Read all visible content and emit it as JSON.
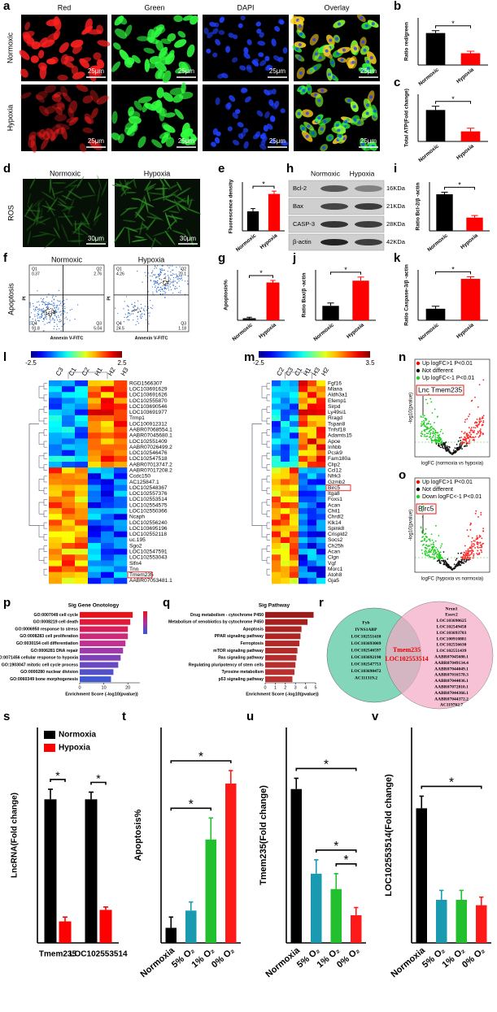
{
  "panels": {
    "a": {
      "label": "a",
      "columns": [
        "Red",
        "Green",
        "DAPI",
        "Overlay"
      ],
      "rows": [
        "Normoxic",
        "Hypoxia"
      ],
      "scale_bar": "25μm"
    },
    "b": {
      "label": "b",
      "chart_data": {
        "type": "bar",
        "categories": [
          "Normoxic",
          "Hypoxia"
        ],
        "values": [
          0.95,
          0.35
        ],
        "errors": [
          0.07,
          0.06
        ],
        "colors": [
          "#000000",
          "#ff0000"
        ],
        "ylabel": "Ratio red/green",
        "ylim": [
          0,
          1.4
        ],
        "sig_labels": [
          "*"
        ]
      }
    },
    "c": {
      "label": "c",
      "chart_data": {
        "type": "bar",
        "categories": [
          "Normoxic",
          "Hypoxia"
        ],
        "values": [
          1.0,
          0.32
        ],
        "errors": [
          0.12,
          0.1
        ],
        "colors": [
          "#000000",
          "#ff0000"
        ],
        "ylabel": "Total ATP(Fold change)",
        "ylim": [
          0,
          1.5
        ],
        "sig_labels": [
          "*"
        ]
      }
    },
    "d": {
      "label": "d",
      "columns": [
        "Normoxic",
        "Hypoxia"
      ],
      "row": "ROS",
      "scale_bar": "30μm"
    },
    "e": {
      "label": "e",
      "chart_data": {
        "type": "bar",
        "categories": [
          "Normoxic",
          "Hypoxia"
        ],
        "values": [
          0.028,
          0.053
        ],
        "errors": [
          0.004,
          0.004
        ],
        "colors": [
          "#000000",
          "#ff0000"
        ],
        "ylabel": "Fluorescence density",
        "ylim": [
          0,
          0.07
        ],
        "sig_labels": [
          "*"
        ]
      }
    },
    "h": {
      "label": "h",
      "columns": [
        "Normoxic",
        "Hypoxia"
      ],
      "bands": [
        {
          "name": "Bcl-2",
          "size": "16KDa"
        },
        {
          "name": "Bax",
          "size": "21KDa"
        },
        {
          "name": "CASP-3",
          "size": "28KDa"
        },
        {
          "name": "β-actin",
          "size": "42KDa"
        }
      ]
    },
    "i": {
      "label": "i",
      "chart_data": {
        "type": "bar",
        "categories": [
          "Normoxic",
          "Hypoxia"
        ],
        "values": [
          1.05,
          0.38
        ],
        "errors": [
          0.06,
          0.06
        ],
        "colors": [
          "#000000",
          "#ff0000"
        ],
        "ylabel": "Ratio Bcl-2/β -actin",
        "ylim": [
          0,
          1.4
        ],
        "sig_labels": [
          "*"
        ]
      }
    },
    "f": {
      "label": "f",
      "row": "Apoptosis",
      "xlabel": "Annexin V-FITC",
      "ylabel": "PI",
      "plots": [
        {
          "title": "Normoxic",
          "quadrants": [
            {
              "name": "Q1",
              "value": 0.37
            },
            {
              "name": "Q2",
              "value": 2.76
            },
            {
              "name": "Q4",
              "value": 91.8
            },
            {
              "name": "Q3",
              "value": 5.04
            }
          ]
        },
        {
          "title": "Hypoxia",
          "quadrants": [
            {
              "name": "Q1",
              "value": 4.26
            },
            {
              "name": "Q2",
              "value": 70.1
            },
            {
              "name": "Q4",
              "value": 24.5
            },
            {
              "name": "Q3",
              "value": 1.18
            }
          ]
        }
      ]
    },
    "g": {
      "label": "g",
      "chart_data": {
        "type": "bar",
        "categories": [
          "Normoxic",
          "Hypoxia"
        ],
        "values": [
          4,
          75
        ],
        "errors": [
          2,
          4
        ],
        "colors": [
          "#000000",
          "#ff0000"
        ],
        "ylabel": "Apoptosis%",
        "ylim": [
          0,
          100
        ],
        "sig_labels": [
          "*"
        ]
      }
    },
    "j": {
      "label": "j",
      "chart_data": {
        "type": "bar",
        "categories": [
          "Normoxic",
          "Hypoxia"
        ],
        "values": [
          0.2,
          0.55
        ],
        "errors": [
          0.04,
          0.05
        ],
        "colors": [
          "#000000",
          "#ff0000"
        ],
        "ylabel": "Ratio Bax/β -actin",
        "ylim": [
          0,
          0.7
        ],
        "sig_labels": [
          "*"
        ]
      }
    },
    "k": {
      "label": "k",
      "chart_data": {
        "type": "bar",
        "categories": [
          "Normoxic",
          "Hypoxia"
        ],
        "values": [
          0.32,
          1.15
        ],
        "errors": [
          0.07,
          0.06
        ],
        "colors": [
          "#000000",
          "#ff0000"
        ],
        "ylabel": "Ratio Caspase-3/β -actin",
        "ylim": [
          0,
          1.4
        ],
        "sig_labels": [
          "*"
        ]
      }
    },
    "l": {
      "label": "l",
      "colorbar": [
        -2.5,
        2.5
      ],
      "columns": [
        "C3",
        "C1",
        "C2",
        "H1",
        "H2",
        "H3"
      ],
      "genes": [
        "RGD1566307",
        "LOC103691629",
        "LOC103691626",
        "LOC102555870",
        "LOC103690546",
        "LOC103691977",
        "Trmp1",
        "LOC100912312",
        "AABR07068554.1",
        "AABR07045680.1",
        "LOC102551409",
        "AABR07026499.2",
        "LOC102546476",
        "LOC102547518",
        "AABR07013747.2",
        "AABR07017208.2",
        "Ccdc150",
        "AC125847.1",
        "LOC102548367",
        "LOC102557376",
        "LOC102553514",
        "LOC102554575",
        "LOC102550366",
        "Ncaph",
        "LOC102556240",
        "LOC103695196",
        "LOC102552118",
        "uc.195",
        "Sgo2",
        "LOC102547591",
        "LOC102553043",
        "Slfn4",
        "Tnn",
        "Tmem235",
        "AABR07053481.1"
      ]
    },
    "m": {
      "label": "m",
      "colorbar": [
        -2.5,
        3.5
      ],
      "columns": [
        "C2",
        "C3",
        "C1",
        "H1",
        "H3",
        "H2"
      ],
      "genes": [
        "Fgf16",
        "Mlana",
        "Aldh3a1",
        "Efemp1",
        "Sirpd",
        "Ly49si1",
        "Rragd",
        "Tspan8",
        "Tnfsf18",
        "Adamts15",
        "Apoe",
        "Inhbb",
        "Pcsk9",
        "Fam180a",
        "Clip2",
        "Ccl12",
        "Nfrk3",
        "Gzmb2",
        "Birc5",
        "Itga8",
        "Foxs1",
        "Acan",
        "Chil1",
        "Chrdl2",
        "Klk14",
        "Spink8",
        "Crispld2",
        "Socs2",
        "Ch25h",
        "Acan",
        "Clgn",
        "Vgf",
        "Morc1",
        "Atoh8",
        "Gja5"
      ]
    },
    "n": {
      "label": "n",
      "legend": [
        "Up logFC>1 P<0.01",
        "Not different",
        "Up logFC<-1 P<0.01"
      ],
      "legend_colors": [
        "#ff0000",
        "#000000",
        "#22cc22"
      ],
      "callout": "Lnc Tmem235",
      "xlabel": "logFC (normoxia vs hypoxia)",
      "ylabel": "-log10(pvalue)"
    },
    "o": {
      "label": "o",
      "legend": [
        "Up logFC>1 P<0.01",
        "Not different",
        "Down logFC<-1 P<0.01"
      ],
      "legend_colors": [
        "#ff0000",
        "#000000",
        "#22cc22"
      ],
      "callout": "Birc5",
      "xlabel": "logFC (hypoxia vs normoxia)",
      "ylabel": "-log10(pvalue)"
    },
    "p": {
      "label": "p",
      "chart_data": {
        "type": "hbar",
        "title": "Sig Gene Onotology",
        "categories": [
          "GO:0007049 cell cycle",
          "GO:0008219 cell death",
          "GO:0006950 response to stress",
          "GO:0008283 cell proliferation",
          "GO:0030154 cell differentiation",
          "GO:0006281 DNA repair",
          "GO:0071456 cellular response to hypoxia",
          "GO:1903047 mitotic cell cycle process",
          "GO:0000280 nuclear division",
          "GO:0060349 bone morphogenesis"
        ],
        "values": [
          22,
          21,
          20,
          20,
          19,
          18,
          17,
          16,
          14,
          13
        ],
        "colors": [
          "#e8141c",
          "#e01a3a",
          "#d81e5a",
          "#cc2a78",
          "#c03090",
          "#a03aa8",
          "#8040b8",
          "#6a48c0",
          "#5450c8",
          "#4058d0"
        ],
        "xlabel": "Enrichment Score (-log10(pvalue))",
        "xlim": [
          0,
          25
        ],
        "xticks": [
          0,
          10,
          20
        ]
      }
    },
    "q": {
      "label": "q",
      "chart_data": {
        "type": "hbar",
        "title": "Sig Pathway",
        "categories": [
          "Drug metabolism - cytochrome P450",
          "Metabolism of xenobiotics by cytochrome P450",
          "Apoptosis",
          "PPAR signaling pathway",
          "Ferroptosis",
          "mTOR signaling pathway",
          "Ras signaling pathway",
          "Regulating pluripotency of stem cells",
          "Tyrosine metabolism",
          "p53 signaling pathway"
        ],
        "values": [
          4.8,
          4.2,
          3.6,
          3.5,
          3.4,
          3.2,
          3.1,
          3.0,
          2.9,
          2.7
        ],
        "colors": [
          "#9e1b1b",
          "#a51f1f",
          "#aa2424",
          "#ae2626",
          "#b02828",
          "#b22a2a",
          "#b42c2c",
          "#b62e2e",
          "#b83030",
          "#ba3232"
        ],
        "xlabel": "Enrichment Score (-log10(pvalue))",
        "xlim": [
          0,
          5
        ],
        "xticks": [
          0,
          1,
          2,
          3,
          4,
          5
        ]
      }
    },
    "r": {
      "label": "r",
      "left": [
        "Fyb",
        "IVNS1ABP",
        "LOC102551410",
        "LOC103693069",
        "LOC102546597",
        "LOC103692190",
        "LOC102547753",
        "LOC103690472",
        "AC111319.2"
      ],
      "right": [
        "Nrxn1",
        "Essrc2",
        "LOC103690625",
        "LOC102549458",
        "LOC103693703",
        "LOC100910881",
        "LOC102556630",
        "LOC102551439",
        "AABR07045680.1",
        "AABR07049134.4",
        "AABR07044049.1",
        "AABR07016578.3",
        "AABR07044036.1",
        "AABR07072810.1",
        "AABR07044366.1",
        "AABR07044372.2",
        "AC119762.7"
      ],
      "center": [
        "Tmem235",
        "LOC102553514"
      ]
    },
    "s": {
      "label": "s",
      "chart_data": {
        "type": "grouped_bar",
        "categories": [
          "Tmem235",
          "LOC102553514"
        ],
        "series": [
          {
            "name": "Normoxia",
            "color": "#000000",
            "values": [
              1.0,
              1.0
            ],
            "errors": [
              0.07,
              0.05
            ]
          },
          {
            "name": "Hypoxia",
            "color": "#ff0000",
            "values": [
              0.15,
              0.23
            ],
            "errors": [
              0.03,
              0.02
            ]
          }
        ],
        "ylabel": "LncRNA(Fold change)",
        "ylim": [
          0,
          1.5
        ],
        "sig_labels": [
          "*",
          "*"
        ]
      }
    },
    "t": {
      "label": "t",
      "chart_data": {
        "type": "bar",
        "categories": [
          "Normoxia",
          "5% O₂",
          "1% O₂",
          "0% O₂"
        ],
        "values": [
          7,
          15,
          48,
          74
        ],
        "errors": [
          5,
          4,
          10,
          6
        ],
        "colors": [
          "#000000",
          "#1a9ab0",
          "#22c02e",
          "#ff1a1a"
        ],
        "ylabel": "Apoptosis%",
        "ylim": [
          0,
          100
        ],
        "sig_labels": [
          "*",
          "*"
        ]
      }
    },
    "u": {
      "label": "u",
      "chart_data": {
        "type": "bar",
        "categories": [
          "Normoxia",
          "5% O₂",
          "1% O₂",
          "0% O₂"
        ],
        "values": [
          1.0,
          0.45,
          0.35,
          0.18
        ],
        "errors": [
          0.07,
          0.09,
          0.1,
          0.05
        ],
        "colors": [
          "#000000",
          "#1a9ab0",
          "#22c02e",
          "#ff1a1a"
        ],
        "ylabel": "Tmem235(Fold change)",
        "ylim": [
          0,
          1.4
        ],
        "sig_labels": [
          "*",
          "*",
          "*"
        ]
      }
    },
    "v": {
      "label": "v",
      "chart_data": {
        "type": "bar",
        "categories": [
          "Normoxia",
          "5% O₂",
          "1% O₂",
          "0% O₂"
        ],
        "values": [
          1.0,
          0.32,
          0.32,
          0.28
        ],
        "errors": [
          0.09,
          0.07,
          0.07,
          0.06
        ],
        "colors": [
          "#000000",
          "#1a9ab0",
          "#22c02e",
          "#ff1a1a"
        ],
        "ylabel": "LOC102553514(Fold change)",
        "ylim": [
          0,
          1.6
        ],
        "sig_labels": [
          "*"
        ]
      }
    }
  }
}
